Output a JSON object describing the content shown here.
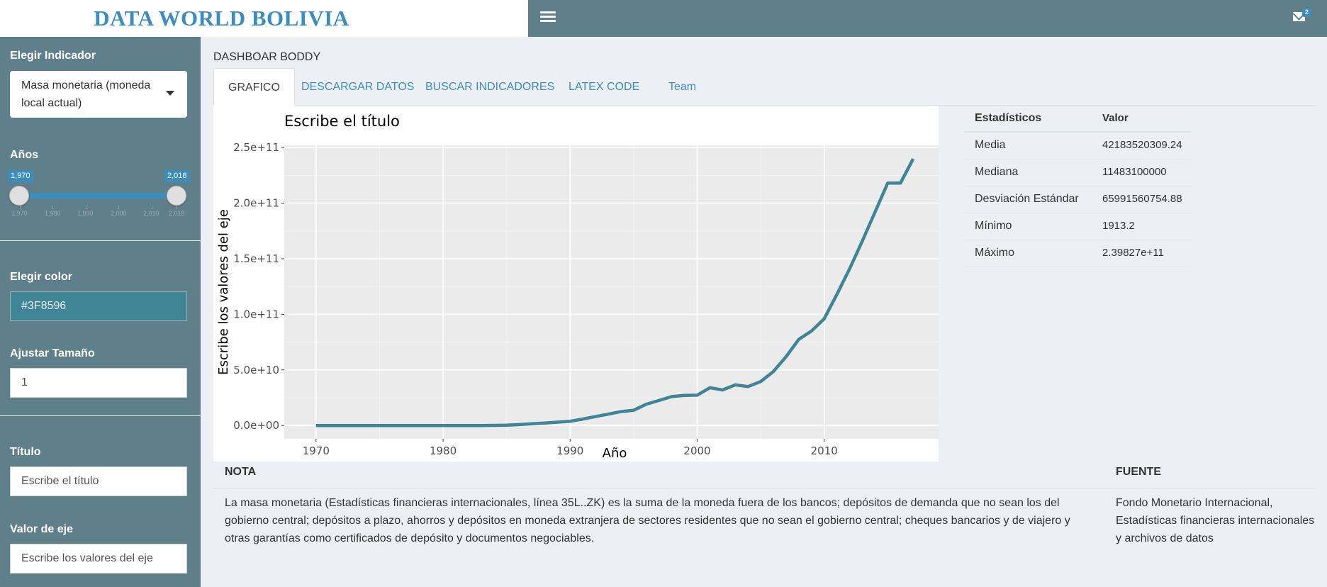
{
  "header": {
    "logo": "DATA WORLD BOLIVIA",
    "messages_count": "2"
  },
  "sidebar": {
    "indicator_label": "Elegir Indicador",
    "indicator_value": "Masa monetaria (moneda local actual)",
    "years_label": "Años",
    "years_min_tag": "1,970",
    "years_max_tag": "2,018",
    "years_grid": [
      "1,970",
      "1,980",
      "1,990",
      "2,000",
      "2,010",
      "2,018"
    ],
    "color_label": "Elegir color",
    "color_value": "#3F8596",
    "size_label": "Ajustar Tamaño",
    "size_value": "1",
    "title_label": "Título",
    "title_placeholder": "Escribe el título",
    "axis_label": "Valor de eje",
    "axis_placeholder": "Escribe los valores del eje"
  },
  "main": {
    "box_title": "DASHBOAR BODDY",
    "tabs": [
      {
        "label": "GRAFICO"
      },
      {
        "label": "DESCARGAR DATOS"
      },
      {
        "label": "BUSCAR INDICADORES"
      },
      {
        "label": "LATEX CODE"
      },
      {
        "label": "Team"
      }
    ]
  },
  "stats": {
    "header": {
      "name": "Estadísticos",
      "value": "Valor"
    },
    "rows": [
      {
        "name": "Media",
        "value": "42183520309.24"
      },
      {
        "name": "Mediana",
        "value": "11483100000"
      },
      {
        "name": "Desviación Estándar",
        "value": "65991560754.88"
      },
      {
        "name": "Mínimo",
        "value": "1913.2"
      },
      {
        "name": "Máximo",
        "value": "2.39827e+11"
      }
    ]
  },
  "nota": {
    "nota_header": "NOTA",
    "fuente_header": "FUENTE",
    "nota_text": "La masa monetaria (Estadísticas financieras internacionales, línea 35L..ZK) es la suma de la moneda fuera de los bancos; depósitos de demanda que no sean los del gobierno central; depósitos a plazo, ahorros y depósitos en moneda extranjera de sectores residentes que no sean el gobierno central; cheques bancarios y de viajero y otras garantías como certificados de depósito y documentos negociables.",
    "fuente_text": "Fondo Monetario Internacional, Estadísticas financieras internacionales y archivos de datos"
  },
  "colors": {
    "line": "#3F8596",
    "panel_bg": "#EBEBEB",
    "sidebar": "#5F7F8B",
    "accent": "#3C8DBC"
  },
  "chart_data": {
    "type": "line",
    "title": "Escribe el título",
    "xlabel": "Año",
    "ylabel": "Escribe los valores del eje",
    "xlim": [
      1967.5,
      2019.5
    ],
    "ylim": [
      -12000000000.0,
      252000000000.0
    ],
    "xticks": [
      1970,
      1980,
      1990,
      2000,
      2010
    ],
    "xtick_labels": [
      "1970",
      "1980",
      "1990",
      "2000",
      "2010"
    ],
    "yticks": [
      0,
      50000000000.0,
      100000000000.0,
      150000000000.0,
      200000000000.0,
      250000000000.0
    ],
    "ytick_labels": [
      "0.0e+00",
      "5.0e+10",
      "1.0e+11",
      "1.5e+11",
      "2.0e+11",
      "2.5e+11"
    ],
    "grid": true,
    "series": [
      {
        "x": [
          1970,
          1971,
          1972,
          1973,
          1974,
          1975,
          1976,
          1977,
          1978,
          1979,
          1980,
          1981,
          1982,
          1983,
          1984,
          1985,
          1986,
          1987,
          1988,
          1989,
          1990,
          1991,
          1992,
          1993,
          1994,
          1995,
          1996,
          1997,
          1998,
          1999,
          2000,
          2001,
          2002,
          2003,
          2004,
          2005,
          2006,
          2007,
          2008,
          2009,
          2010,
          2011,
          2012,
          2013,
          2014,
          2015,
          2016,
          2017
        ],
        "y": [
          0,
          0,
          0,
          0,
          0,
          0,
          0,
          0,
          0,
          0,
          0,
          0,
          0,
          0,
          100000000.0,
          300000000.0,
          800000000.0,
          1500000000.0,
          2200000000.0,
          3000000000.0,
          3800000000.0,
          5800000000.0,
          8000000000.0,
          10200000000.0,
          12500000000.0,
          13700000000.0,
          19200000000.0,
          22500000000.0,
          26000000000.0,
          27000000000.0,
          27300000000.0,
          34000000000.0,
          32000000000.0,
          36500000000.0,
          35000000000.0,
          39500000000.0,
          48500000000.0,
          62000000000.0,
          77500000000.0,
          85000000000.0,
          96000000000.0,
          118000000000.0,
          141000000000.0,
          166000000000.0,
          192000000000.0,
          218000000000.0,
          218000000000.0,
          239800000000.0
        ]
      }
    ]
  }
}
